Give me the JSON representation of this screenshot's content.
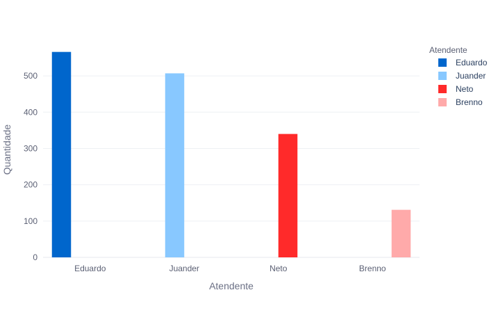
{
  "chart_data": {
    "type": "bar",
    "categories": [
      "Eduardo",
      "Juander",
      "Neto",
      "Brenno"
    ],
    "series": [
      {
        "name": "Eduardo",
        "color": "#0066cc",
        "values": [
          566,
          null,
          null,
          null
        ]
      },
      {
        "name": "Juander",
        "color": "#88c8ff",
        "values": [
          null,
          507,
          null,
          null
        ]
      },
      {
        "name": "Neto",
        "color": "#ff2a2a",
        "values": [
          null,
          null,
          340,
          null
        ]
      },
      {
        "name": "Brenno",
        "color": "#ffaaaa",
        "values": [
          null,
          null,
          null,
          131
        ]
      }
    ],
    "xlabel": "Atendente",
    "ylabel": "Quantidade",
    "ylim": [
      0,
      596
    ],
    "yticks": [
      0,
      100,
      200,
      300,
      400,
      500
    ],
    "grid": true,
    "legend": {
      "title": "Atendente",
      "placement": "top-right"
    }
  }
}
